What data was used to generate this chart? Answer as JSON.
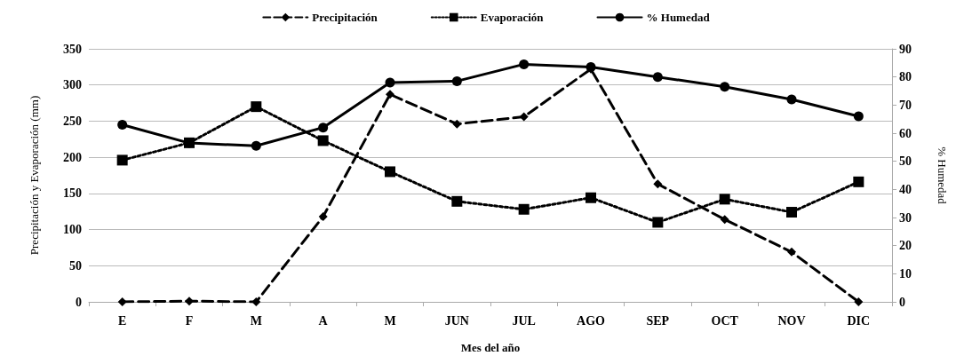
{
  "chart_data": {
    "type": "line",
    "xlabel": "Mes del año",
    "ylabel": "Precipitación y Evaporación (mm)",
    "y2label": "% Humedad",
    "categories": [
      "E",
      "F",
      "M",
      "A",
      "M",
      "JUN",
      "JUL",
      "AGO",
      "SEP",
      "OCT",
      "NOV",
      "DIC"
    ],
    "series": [
      {
        "name": "Precipitación",
        "color": "#000000",
        "marker": "diamond",
        "line_style": "dashed",
        "values": [
          0,
          1,
          0,
          118,
          287,
          246,
          256,
          322,
          163,
          114,
          69,
          0
        ]
      },
      {
        "name": "Evaporación",
        "color": "#000000",
        "marker": "square",
        "line_style": "dotted",
        "values": [
          196,
          220,
          270,
          223,
          180,
          139,
          128,
          144,
          110,
          142,
          124,
          166
        ]
      },
      {
        "name": "% Humedad",
        "color": "#000000",
        "marker": "circle",
        "line_style": "solid",
        "axis": "y2",
        "values": [
          63,
          56.5,
          55.5,
          62,
          78,
          78.5,
          84.5,
          83.5,
          80,
          76.5,
          72,
          66
        ]
      }
    ],
    "ylim": [
      0,
      350
    ],
    "yticks": [
      0,
      50,
      100,
      150,
      200,
      250,
      300,
      350
    ],
    "y2lim": [
      0,
      90
    ],
    "y2ticks": [
      0,
      10,
      20,
      30,
      40,
      50,
      60,
      70,
      80,
      90
    ],
    "grid": "y",
    "legend": "top"
  }
}
